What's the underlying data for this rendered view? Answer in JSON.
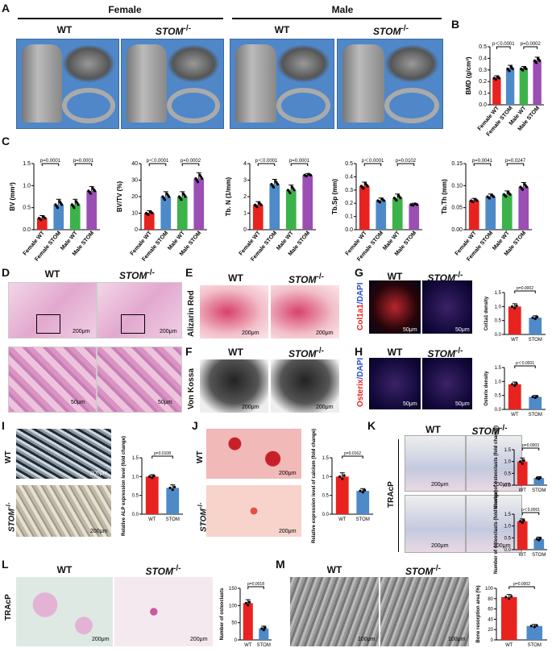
{
  "panel_labels": {
    "A": "A",
    "B": "B",
    "C": "C",
    "D": "D",
    "E": "E",
    "F": "F",
    "G": "G",
    "H": "H",
    "I": "I",
    "J": "J",
    "K": "K",
    "L": "L",
    "M": "M"
  },
  "panelA": {
    "female": "Female",
    "male": "Male",
    "wt": "WT",
    "stom": "STOM",
    "sup": "-/-"
  },
  "scales": {
    "s200": "200μm",
    "s50": "50μm",
    "s100": "100μm"
  },
  "stain": {
    "alizarin": "Alizarin Red",
    "vonkossa": "Von Kossa",
    "col1a1": "Col1a1",
    "osterix": "Osterix",
    "dapi": "/DAPI",
    "trap": "TRAcP"
  },
  "colors": {
    "female_wt": "#e8231f",
    "female_stom": "#4e8ac8",
    "male_wt": "#3cb34a",
    "male_stom": "#9b4fb3",
    "wt_bar": "#e8231f",
    "stom_bar": "#4e8ac8"
  },
  "group_labels_4": [
    "Female WT",
    "Female STOM",
    "Male WT",
    "Male STOM"
  ],
  "group_labels_2": [
    "WT",
    "STOM"
  ],
  "chart_data": [
    {
      "id": "B",
      "type": "bar",
      "ylabel": "BMD (g/cm³)",
      "ylim": [
        0,
        0.5
      ],
      "yticks": [
        "0.0",
        "0.1",
        "0.2",
        "0.3",
        "0.4",
        "0.5"
      ],
      "values": [
        0.23,
        0.31,
        0.31,
        0.38
      ],
      "errors": [
        0.02,
        0.03,
        0.02,
        0.03
      ],
      "pvalues": [
        "p＜0.0001",
        "p=0.0002"
      ]
    },
    {
      "id": "C1",
      "type": "bar",
      "ylabel": "BV (mm³)",
      "ylim": [
        0,
        1.5
      ],
      "yticks": [
        "0.0",
        "0.5",
        "1.0",
        "1.5"
      ],
      "values": [
        0.26,
        0.57,
        0.57,
        0.88
      ],
      "errors": [
        0.06,
        0.12,
        0.12,
        0.1
      ],
      "pvalues": [
        "p=0.0001",
        "p=0.0001"
      ]
    },
    {
      "id": "C2",
      "type": "bar",
      "ylabel": "BV/TV (%)",
      "ylim": [
        0,
        40
      ],
      "yticks": [
        "0",
        "10",
        "20",
        "30",
        "40"
      ],
      "values": [
        10,
        20,
        20,
        31
      ],
      "errors": [
        1.5,
        3,
        3,
        3.5
      ],
      "pvalues": [
        "p＜0.0001",
        "p=0.0002"
      ]
    },
    {
      "id": "C3",
      "type": "bar",
      "ylabel": "Tb. N (1/mm)",
      "ylim": [
        0,
        4
      ],
      "yticks": [
        "0",
        "1",
        "2",
        "3",
        "4"
      ],
      "values": [
        1.5,
        2.75,
        2.4,
        3.3
      ],
      "errors": [
        0.2,
        0.3,
        0.3,
        0.1
      ],
      "pvalues": [
        "p＜0.0001",
        "p=0.0001"
      ]
    },
    {
      "id": "C4",
      "type": "bar",
      "ylabel": "Tb.Sp (mm)",
      "ylim": [
        0,
        0.5
      ],
      "yticks": [
        "0.0",
        "0.1",
        "0.2",
        "0.3",
        "0.4",
        "0.5"
      ],
      "values": [
        0.33,
        0.22,
        0.24,
        0.19
      ],
      "errors": [
        0.03,
        0.02,
        0.03,
        0.01
      ],
      "pvalues": [
        "p＜0.0001",
        "p=0.0102"
      ]
    },
    {
      "id": "C5",
      "type": "bar",
      "ylabel": "Tb.Th (mm)",
      "ylim": [
        0,
        0.15
      ],
      "yticks": [
        "0.00",
        "0.05",
        "0.10",
        "0.15"
      ],
      "values": [
        0.066,
        0.075,
        0.08,
        0.097
      ],
      "errors": [
        0.005,
        0.006,
        0.008,
        0.01
      ],
      "pvalues": [
        "p=0.0041",
        "p=0.0247"
      ]
    },
    {
      "id": "G",
      "type": "bar",
      "ylabel": "Col1a1 density",
      "ylim": [
        0,
        1.5
      ],
      "yticks": [
        "0.0",
        "0.5",
        "1.0",
        "1.5"
      ],
      "values": [
        1.0,
        0.6
      ],
      "errors": [
        0.1,
        0.07
      ],
      "pvalues": [
        "p=0.0002"
      ]
    },
    {
      "id": "H",
      "type": "bar",
      "ylabel": "Osterix density",
      "ylim": [
        0,
        1.5
      ],
      "yticks": [
        "0.0",
        "0.5",
        "1.0",
        "1.5"
      ],
      "values": [
        0.9,
        0.45
      ],
      "errors": [
        0.08,
        0.05
      ],
      "pvalues": [
        "p＜0.0001"
      ]
    },
    {
      "id": "I",
      "type": "bar",
      "ylabel": "Relative ALP expression level (fold change)",
      "ylim": [
        0,
        1.5
      ],
      "yticks": [
        "0.0",
        "0.5",
        "1.0",
        "1.5"
      ],
      "values": [
        1.0,
        0.7
      ],
      "errors": [
        0.05,
        0.08
      ],
      "pvalues": [
        "p=0.0108"
      ]
    },
    {
      "id": "J",
      "type": "bar",
      "ylabel": "Relative expression level of calcium (fold change)",
      "ylim": [
        0,
        1.5
      ],
      "yticks": [
        "0.0",
        "0.5",
        "1.0",
        "1.5"
      ],
      "values": [
        1.0,
        0.62
      ],
      "errors": [
        0.1,
        0.06
      ],
      "pvalues": [
        "p=0.0162"
      ]
    },
    {
      "id": "K1",
      "type": "bar",
      "ylabel": "Number of osteoclasts (fold change)",
      "ylim": [
        0,
        1.5
      ],
      "yticks": [
        "0.0",
        "0.5",
        "1.0",
        "1.5"
      ],
      "values": [
        1.0,
        0.3
      ],
      "errors": [
        0.15,
        0.06
      ],
      "pvalues": [
        "p=0.0003"
      ]
    },
    {
      "id": "K2",
      "type": "bar",
      "ylabel": "Number of osteoclasts (fold change)",
      "ylim": [
        0,
        1.5
      ],
      "yticks": [
        "0.0",
        "0.5",
        "1.0",
        "1.5"
      ],
      "values": [
        1.2,
        0.45
      ],
      "errors": [
        0.1,
        0.08
      ],
      "pvalues": [
        "p＜0.0001"
      ]
    },
    {
      "id": "L",
      "type": "bar",
      "ylabel": "Number of osteoclasts",
      "ylim": [
        0,
        150
      ],
      "yticks": [
        "0",
        "50",
        "100",
        "150"
      ],
      "values": [
        107,
        33
      ],
      "errors": [
        10,
        7
      ],
      "pvalues": [
        "p=0.0018"
      ]
    },
    {
      "id": "M",
      "type": "bar",
      "ylabel": "Bone resorption area (%)",
      "ylim": [
        0,
        100
      ],
      "yticks": [
        "0",
        "20",
        "40",
        "60",
        "80",
        "100"
      ],
      "values": [
        83,
        27
      ],
      "errors": [
        5,
        3
      ],
      "pvalues": [
        "p=0.0002"
      ]
    }
  ]
}
